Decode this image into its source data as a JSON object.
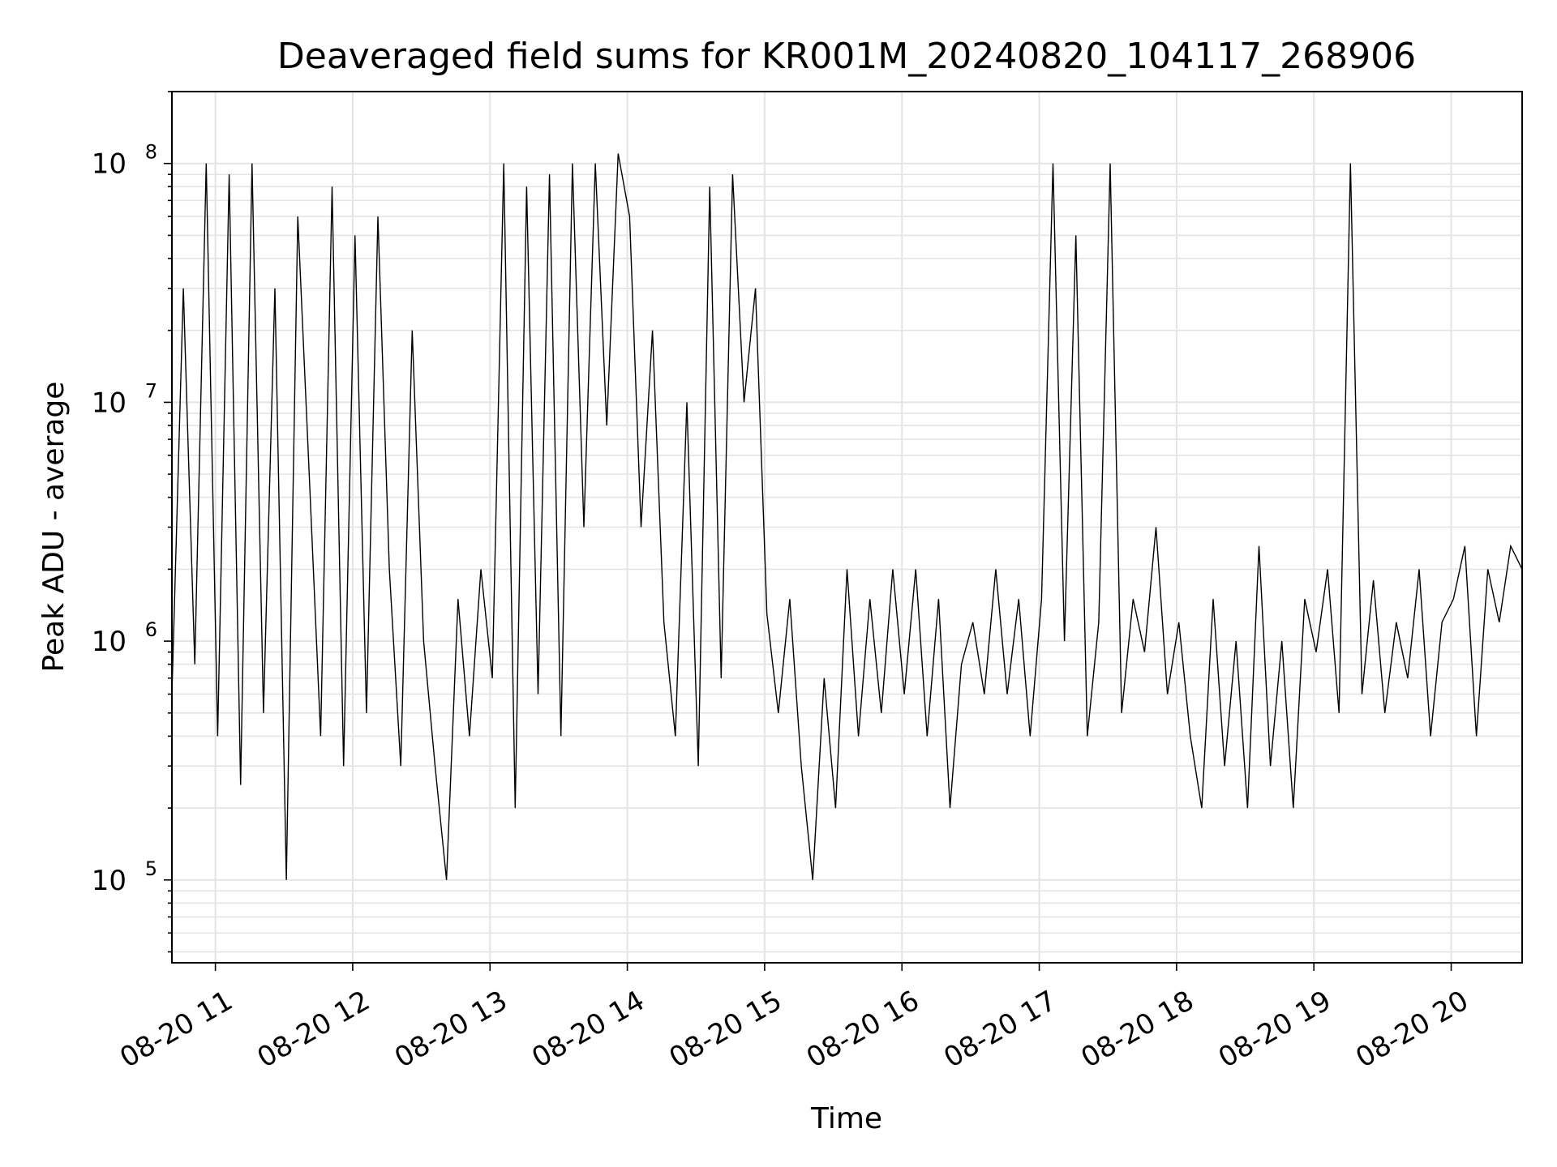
{
  "chart_data": {
    "type": "line",
    "title": "Deaveraged field sums for KR001M_20240820_104117_268906",
    "xlabel": "Time",
    "ylabel": "Peak ADU - average",
    "yscale": "log",
    "ylim": [
      45000,
      200000000
    ],
    "xlim": [
      "2024-08-20 10:41",
      "2024-08-20 20:31"
    ],
    "grid": true,
    "line_color": "#000000",
    "x_tick_labels": [
      "08-20 11",
      "08-20 12",
      "08-20 13",
      "08-20 14",
      "08-20 15",
      "08-20 16",
      "08-20 17",
      "08-20 18",
      "08-20 19",
      "08-20 20"
    ],
    "y_tick_labels": [
      {
        "base": "10",
        "exp": "5",
        "value": 100000
      },
      {
        "base": "10",
        "exp": "6",
        "value": 1000000
      },
      {
        "base": "10",
        "exp": "7",
        "value": 10000000
      },
      {
        "base": "10",
        "exp": "8",
        "value": 100000000
      }
    ],
    "series": [
      {
        "x": [
          "2024-08-20 10:41",
          "2024-08-20 10:46",
          "2024-08-20 10:51",
          "2024-08-20 10:56",
          "2024-08-20 11:01",
          "2024-08-20 11:06",
          "2024-08-20 11:11",
          "2024-08-20 11:16",
          "2024-08-20 11:21",
          "2024-08-20 11:26",
          "2024-08-20 11:31",
          "2024-08-20 11:36",
          "2024-08-20 11:41",
          "2024-08-20 11:46",
          "2024-08-20 11:51",
          "2024-08-20 11:56",
          "2024-08-20 12:01",
          "2024-08-20 12:06",
          "2024-08-20 12:11",
          "2024-08-20 12:16",
          "2024-08-20 12:21",
          "2024-08-20 12:26",
          "2024-08-20 12:31",
          "2024-08-20 12:36",
          "2024-08-20 12:41",
          "2024-08-20 12:46",
          "2024-08-20 12:51",
          "2024-08-20 12:56",
          "2024-08-20 13:01",
          "2024-08-20 13:06",
          "2024-08-20 13:11",
          "2024-08-20 13:16",
          "2024-08-20 13:21",
          "2024-08-20 13:26",
          "2024-08-20 13:31",
          "2024-08-20 13:36",
          "2024-08-20 13:41",
          "2024-08-20 13:46",
          "2024-08-20 13:51",
          "2024-08-20 13:56",
          "2024-08-20 14:01",
          "2024-08-20 14:06",
          "2024-08-20 14:11",
          "2024-08-20 14:16",
          "2024-08-20 14:21",
          "2024-08-20 14:26",
          "2024-08-20 14:31",
          "2024-08-20 14:36",
          "2024-08-20 14:41",
          "2024-08-20 14:46",
          "2024-08-20 14:51",
          "2024-08-20 14:56",
          "2024-08-20 15:01",
          "2024-08-20 15:06",
          "2024-08-20 15:11",
          "2024-08-20 15:16",
          "2024-08-20 15:21",
          "2024-08-20 15:26",
          "2024-08-20 15:31",
          "2024-08-20 15:36",
          "2024-08-20 15:41",
          "2024-08-20 15:46",
          "2024-08-20 15:51",
          "2024-08-20 15:56",
          "2024-08-20 16:01",
          "2024-08-20 16:06",
          "2024-08-20 16:11",
          "2024-08-20 16:16",
          "2024-08-20 16:21",
          "2024-08-20 16:26",
          "2024-08-20 16:31",
          "2024-08-20 16:36",
          "2024-08-20 16:41",
          "2024-08-20 16:46",
          "2024-08-20 16:51",
          "2024-08-20 16:56",
          "2024-08-20 17:01",
          "2024-08-20 17:06",
          "2024-08-20 17:11",
          "2024-08-20 17:16",
          "2024-08-20 17:21",
          "2024-08-20 17:26",
          "2024-08-20 17:31",
          "2024-08-20 17:36",
          "2024-08-20 17:41",
          "2024-08-20 17:46",
          "2024-08-20 17:51",
          "2024-08-20 17:56",
          "2024-08-20 18:01",
          "2024-08-20 18:06",
          "2024-08-20 18:11",
          "2024-08-20 18:16",
          "2024-08-20 18:21",
          "2024-08-20 18:26",
          "2024-08-20 18:31",
          "2024-08-20 18:36",
          "2024-08-20 18:41",
          "2024-08-20 18:46",
          "2024-08-20 18:51",
          "2024-08-20 18:56",
          "2024-08-20 19:01",
          "2024-08-20 19:06",
          "2024-08-20 19:11",
          "2024-08-20 19:16",
          "2024-08-20 19:21",
          "2024-08-20 19:26",
          "2024-08-20 19:31",
          "2024-08-20 19:36",
          "2024-08-20 19:41",
          "2024-08-20 19:46",
          "2024-08-20 19:51",
          "2024-08-20 19:56",
          "2024-08-20 20:01",
          "2024-08-20 20:06",
          "2024-08-20 20:11",
          "2024-08-20 20:16",
          "2024-08-20 20:21",
          "2024-08-20 20:26",
          "2024-08-20 20:31"
        ],
        "values": [
          600000,
          30000000,
          800000,
          100000000,
          400000,
          90000000,
          250000,
          100000000,
          500000,
          30000000,
          100000,
          60000000,
          5000000,
          400000,
          80000000,
          300000,
          50000000,
          500000,
          60000000,
          2000000,
          300000,
          20000000,
          1000000,
          300000,
          100000,
          1500000,
          400000,
          2000000,
          700000,
          100000000,
          200000,
          80000000,
          600000,
          90000000,
          400000,
          100000000,
          3000000,
          100000000,
          8000000,
          110000000,
          60000000,
          3000000,
          20000000,
          1200000,
          400000,
          10000000,
          300000,
          80000000,
          700000,
          90000000,
          10000000,
          30000000,
          1300000,
          500000,
          1500000,
          300000,
          100000,
          700000,
          200000,
          2000000,
          400000,
          1500000,
          500000,
          2000000,
          600000,
          2000000,
          400000,
          1500000,
          200000,
          800000,
          1200000,
          600000,
          2000000,
          600000,
          1500000,
          400000,
          1500000,
          100000000,
          1000000,
          50000000,
          400000,
          1200000,
          100000000,
          500000,
          1500000,
          900000,
          3000000,
          600000,
          1200000,
          400000,
          200000,
          1500000,
          300000,
          1000000,
          200000,
          2500000,
          300000,
          1000000,
          200000,
          1500000,
          900000,
          2000000,
          500000,
          100000000,
          600000,
          1800000,
          500000,
          1200000,
          700000,
          2000000,
          400000,
          1200000,
          1500000,
          2500000,
          400000,
          2000000,
          1200000,
          2500000,
          2000000
        ]
      }
    ]
  }
}
